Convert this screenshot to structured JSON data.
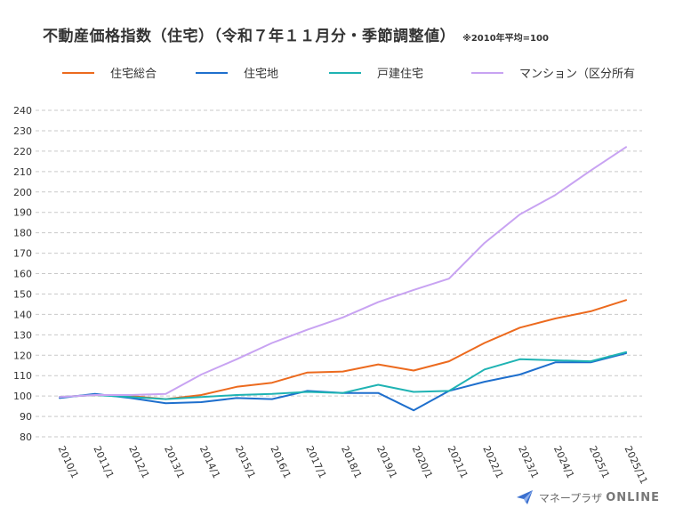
{
  "header": {
    "title": "不動産価格指数（住宅）（令和７年１１月分・季節調整値）",
    "note": "※2010年平均=100"
  },
  "logo": {
    "text": "マネープラザ",
    "suffix": "ONLINE"
  },
  "chart_data": {
    "type": "line",
    "title": "不動産価格指数（住宅）（令和７年１１月分・季節調整値）",
    "note": "※2010年平均=100",
    "categories": [
      "2010/1",
      "2011/1",
      "2012/1",
      "2013/1",
      "2014/1",
      "2015/1",
      "2016/1",
      "2017/1",
      "2018/1",
      "2019/1",
      "2020/1",
      "2021/1",
      "2022/1",
      "2023/1",
      "2024/1",
      "2025/1",
      "2025/11"
    ],
    "ylim": [
      80,
      240
    ],
    "yticks": [
      80,
      90,
      100,
      110,
      120,
      130,
      140,
      150,
      160,
      170,
      180,
      190,
      200,
      210,
      220,
      230,
      240
    ],
    "grid": true,
    "legend_position": "top",
    "series": [
      {
        "name": "住宅総合",
        "color": "#ec6a1e",
        "values": [
          99.5,
          100.5,
          100,
          98.5,
          100.5,
          104.5,
          106.5,
          111.5,
          112,
          115.5,
          112.5,
          117,
          126,
          133.5,
          138,
          141.5,
          147
        ]
      },
      {
        "name": "住宅地",
        "color": "#1e6fcd",
        "values": [
          99,
          101,
          99,
          96.5,
          97,
          99,
          98.5,
          102.5,
          101.5,
          101.5,
          93,
          102.5,
          107,
          110.5,
          116.5,
          116.5,
          121
        ]
      },
      {
        "name": "戸建住宅",
        "color": "#1fb3b3",
        "values": [
          99.5,
          100.5,
          99.5,
          98.5,
          99.5,
          100.5,
          101,
          102,
          101.5,
          105.5,
          102,
          102.5,
          113,
          118,
          117.5,
          117,
          121.5
        ]
      },
      {
        "name": "マンション（区分所有",
        "color": "#c8a3f2",
        "values": [
          99.5,
          100.5,
          100.5,
          101,
          110.5,
          118,
          126,
          132.5,
          138.5,
          146,
          152,
          157.5,
          175,
          189,
          198.5,
          210.5,
          222
        ]
      }
    ]
  }
}
